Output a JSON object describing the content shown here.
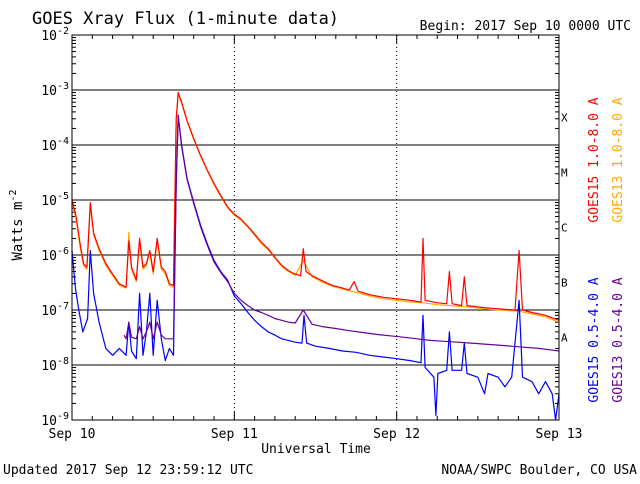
{
  "chart_data": {
    "type": "line",
    "title": "GOES Xray Flux (1-minute data)",
    "begin": "Begin:  2017 Sep 10 0000 UTC",
    "ylabel": "Watts m",
    "ylabel_exponent": "-2",
    "xlabel": "Universal Time",
    "yscale": "log",
    "ylim": [
      1e-09,
      0.01
    ],
    "xlim": [
      0,
      72
    ],
    "x_unit": "hours since 2017 Sep 10 0000 UTC",
    "x_ticks": [
      {
        "x": 0,
        "label": "Sep 10"
      },
      {
        "x": 24,
        "label": "Sep 11"
      },
      {
        "x": 48,
        "label": "Sep 12"
      },
      {
        "x": 72,
        "label": "Sep 13"
      }
    ],
    "y_ticks": [
      {
        "exp": -2,
        "base": "10",
        "sup": "-2"
      },
      {
        "exp": -3,
        "base": "10",
        "sup": "-3"
      },
      {
        "exp": -4,
        "base": "10",
        "sup": "-4"
      },
      {
        "exp": -5,
        "base": "10",
        "sup": "-5"
      },
      {
        "exp": -6,
        "base": "10",
        "sup": "-6"
      },
      {
        "exp": -7,
        "base": "10",
        "sup": "-7"
      },
      {
        "exp": -8,
        "base": "10",
        "sup": "-8"
      },
      {
        "exp": -9,
        "base": "10",
        "sup": "-9"
      }
    ],
    "flare_classes": [
      {
        "label": "X",
        "value": 0.0001
      },
      {
        "label": "M",
        "value": 1e-05
      },
      {
        "label": "C",
        "value": 1e-06
      },
      {
        "label": "B",
        "value": 1e-07
      },
      {
        "label": "A",
        "value": 1e-08
      }
    ],
    "series": [
      {
        "name": "GOES15 1.0-8.0 A",
        "color": "#ff0000",
        "points": [
          [
            0,
            1e-05
          ],
          [
            0.6,
            5e-06
          ],
          [
            1.2,
            1.6e-06
          ],
          [
            1.7,
            7e-07
          ],
          [
            2.2,
            6e-07
          ],
          [
            2.7,
            9e-06
          ],
          [
            3.2,
            2.5e-06
          ],
          [
            4,
            1.3e-06
          ],
          [
            5,
            7e-07
          ],
          [
            6,
            4.5e-07
          ],
          [
            7,
            3e-07
          ],
          [
            8,
            2.6e-07
          ],
          [
            8.4,
            1.8e-06
          ],
          [
            8.8,
            6e-07
          ],
          [
            9.5,
            3.5e-07
          ],
          [
            10,
            2e-06
          ],
          [
            10.5,
            6e-07
          ],
          [
            11,
            7e-07
          ],
          [
            11.5,
            1.2e-06
          ],
          [
            12,
            5e-07
          ],
          [
            12.6,
            2e-06
          ],
          [
            13.2,
            6e-07
          ],
          [
            13.8,
            5e-07
          ],
          [
            14.4,
            3e-07
          ],
          [
            15,
            2.8e-07
          ],
          [
            15.4,
            0.0003
          ],
          [
            15.7,
            0.0009
          ],
          [
            16.2,
            0.0006
          ],
          [
            17,
            0.00028
          ],
          [
            18,
            0.00013
          ],
          [
            19,
            6.5e-05
          ],
          [
            20,
            3.5e-05
          ],
          [
            21,
            2e-05
          ],
          [
            22,
            1.2e-05
          ],
          [
            23,
            7.5e-06
          ],
          [
            24,
            5.5e-06
          ],
          [
            25,
            4.5e-06
          ],
          [
            26,
            3.3e-06
          ],
          [
            27,
            2.4e-06
          ],
          [
            28,
            1.7e-06
          ],
          [
            29,
            1.3e-06
          ],
          [
            30,
            9e-07
          ],
          [
            31,
            6.5e-07
          ],
          [
            32,
            5.2e-07
          ],
          [
            33,
            4.5e-07
          ],
          [
            33.8,
            4.2e-07
          ],
          [
            34.2,
            1.3e-06
          ],
          [
            34.6,
            5e-07
          ],
          [
            35.5,
            4.2e-07
          ],
          [
            37,
            3.4e-07
          ],
          [
            38.5,
            2.8e-07
          ],
          [
            40,
            2.5e-07
          ],
          [
            41,
            2.3e-07
          ],
          [
            41.7,
            3.3e-07
          ],
          [
            42.3,
            2.2e-07
          ],
          [
            44,
            1.9e-07
          ],
          [
            46,
            1.7e-07
          ],
          [
            48,
            1.6e-07
          ],
          [
            50,
            1.5e-07
          ],
          [
            51.6,
            1.4e-07
          ],
          [
            51.9,
            2e-06
          ],
          [
            52.2,
            1.5e-07
          ],
          [
            54,
            1.35e-07
          ],
          [
            55.4,
            1.3e-07
          ],
          [
            55.8,
            5e-07
          ],
          [
            56.2,
            1.3e-07
          ],
          [
            57.6,
            1.2e-07
          ],
          [
            58,
            4e-07
          ],
          [
            58.4,
            1.2e-07
          ],
          [
            61,
            1.1e-07
          ],
          [
            63,
            1.05e-07
          ],
          [
            65.5,
            1e-07
          ],
          [
            66.1,
            1.2e-06
          ],
          [
            66.6,
            1e-07
          ],
          [
            68,
            9e-08
          ],
          [
            70,
            8e-08
          ],
          [
            72,
            6.5e-08
          ]
        ]
      },
      {
        "name": "GOES13 1.0-8.0 A",
        "color": "#ffaa00",
        "points": [
          [
            0,
            9e-06
          ],
          [
            0.6,
            4.5e-06
          ],
          [
            1.2,
            1.4e-06
          ],
          [
            1.7,
            6.5e-07
          ],
          [
            2.2,
            5.5e-07
          ],
          [
            2.7,
            8e-06
          ],
          [
            3.2,
            2.3e-06
          ],
          [
            4,
            1.2e-06
          ],
          [
            5,
            6.5e-07
          ],
          [
            6,
            4.2e-07
          ],
          [
            7,
            2.8e-07
          ],
          [
            8,
            2.5e-07
          ],
          [
            8.4,
            2.6e-06
          ],
          [
            8.8,
            5.5e-07
          ],
          [
            9.5,
            3.3e-07
          ],
          [
            10,
            1.8e-06
          ],
          [
            10.5,
            5.5e-07
          ],
          [
            11,
            6.5e-07
          ],
          [
            11.5,
            1.1e-06
          ],
          [
            12,
            4.5e-07
          ],
          [
            12.6,
            1.8e-06
          ],
          [
            13.2,
            5.5e-07
          ],
          [
            13.8,
            4.5e-07
          ],
          [
            14.4,
            2.8e-07
          ],
          [
            15,
            2.6e-07
          ],
          [
            15.4,
            0.00028
          ],
          [
            15.7,
            0.00085
          ],
          [
            16.2,
            0.00058
          ],
          [
            17,
            0.00027
          ],
          [
            18,
            0.000125
          ],
          [
            19,
            6.3e-05
          ],
          [
            20,
            3.4e-05
          ],
          [
            21,
            1.9e-05
          ],
          [
            22,
            1.15e-05
          ],
          [
            23,
            7.2e-06
          ],
          [
            24,
            5.3e-06
          ],
          [
            25,
            4.3e-06
          ],
          [
            26,
            3.2e-06
          ],
          [
            27,
            2.3e-06
          ],
          [
            28,
            1.6e-06
          ],
          [
            29,
            1.25e-06
          ],
          [
            30,
            8.7e-07
          ],
          [
            31,
            6.2e-07
          ],
          [
            32,
            5e-07
          ],
          [
            33,
            4.3e-07
          ],
          [
            34.2,
            8e-07
          ],
          [
            35.5,
            4e-07
          ],
          [
            37,
            3.2e-07
          ],
          [
            38.5,
            2.7e-07
          ],
          [
            40,
            2.4e-07
          ],
          [
            42,
            2.1e-07
          ],
          [
            44,
            1.8e-07
          ],
          [
            46,
            1.6e-07
          ],
          [
            48,
            1.5e-07
          ],
          [
            50,
            1.4e-07
          ],
          [
            52,
            1.35e-07
          ],
          [
            54,
            1.25e-07
          ],
          [
            56,
            1.2e-07
          ],
          [
            58,
            1.15e-07
          ],
          [
            61,
            1.05e-07
          ],
          [
            63,
            1e-07
          ],
          [
            66,
            9.5e-08
          ],
          [
            68,
            8.5e-08
          ],
          [
            70,
            7.5e-08
          ],
          [
            72,
            6e-08
          ]
        ]
      },
      {
        "name": "GOES15 0.5-4.0 A",
        "color": "#0000ff",
        "points": [
          [
            0,
            1.2e-06
          ],
          [
            0.5,
            2.5e-07
          ],
          [
            1,
            1e-07
          ],
          [
            1.6,
            4e-08
          ],
          [
            2.3,
            7e-08
          ],
          [
            2.7,
            1.2e-06
          ],
          [
            3.2,
            2e-07
          ],
          [
            4,
            6e-08
          ],
          [
            5,
            2e-08
          ],
          [
            6,
            1.5e-08
          ],
          [
            7,
            2e-08
          ],
          [
            8,
            1.5e-08
          ],
          [
            8.4,
            6e-08
          ],
          [
            8.8,
            1.8e-08
          ],
          [
            9.5,
            1.3e-08
          ],
          [
            10,
            2e-07
          ],
          [
            10.5,
            1.5e-08
          ],
          [
            11,
            4e-08
          ],
          [
            11.5,
            2e-07
          ],
          [
            12,
            1.5e-08
          ],
          [
            12.6,
            1.5e-07
          ],
          [
            13.2,
            3e-08
          ],
          [
            13.8,
            1.2e-08
          ],
          [
            14.4,
            2e-08
          ],
          [
            15,
            1.5e-08
          ],
          [
            15.4,
            2e-05
          ],
          [
            15.7,
            0.00035
          ],
          [
            16.2,
            0.0001
          ],
          [
            17,
            2.5e-05
          ],
          [
            18,
            9e-06
          ],
          [
            19,
            3.5e-06
          ],
          [
            20,
            1.6e-06
          ],
          [
            21,
            8e-07
          ],
          [
            22,
            5e-07
          ],
          [
            23,
            3.5e-07
          ],
          [
            24,
            1.8e-07
          ],
          [
            25,
            1.3e-07
          ],
          [
            26,
            9e-08
          ],
          [
            27,
            6.5e-08
          ],
          [
            28,
            5e-08
          ],
          [
            29,
            4e-08
          ],
          [
            30,
            3.5e-08
          ],
          [
            31,
            3e-08
          ],
          [
            32,
            2.8e-08
          ],
          [
            33,
            2.6e-08
          ],
          [
            34,
            2.5e-08
          ],
          [
            34.3,
            8e-08
          ],
          [
            34.7,
            2.5e-08
          ],
          [
            36,
            2.2e-08
          ],
          [
            38,
            2e-08
          ],
          [
            40,
            1.8e-08
          ],
          [
            42,
            1.7e-08
          ],
          [
            44,
            1.5e-08
          ],
          [
            46,
            1.4e-08
          ],
          [
            48,
            1.3e-08
          ],
          [
            50,
            1.2e-08
          ],
          [
            51.6,
            1.1e-08
          ],
          [
            51.9,
            8e-08
          ],
          [
            52.2,
            9e-09
          ],
          [
            53.5,
            6e-09
          ],
          [
            53.8,
            1.2e-09
          ],
          [
            54.1,
            7e-09
          ],
          [
            55.4,
            8e-09
          ],
          [
            55.8,
            4e-08
          ],
          [
            56.2,
            8e-09
          ],
          [
            57.6,
            8e-09
          ],
          [
            58,
            2.5e-08
          ],
          [
            58.4,
            7e-09
          ],
          [
            60,
            6e-09
          ],
          [
            61,
            3e-09
          ],
          [
            61.5,
            7e-09
          ],
          [
            63,
            6e-09
          ],
          [
            64,
            4e-09
          ],
          [
            65,
            6e-09
          ],
          [
            66.1,
            1.5e-07
          ],
          [
            66.6,
            6e-09
          ],
          [
            68,
            5e-09
          ],
          [
            69,
            3e-09
          ],
          [
            70,
            5e-09
          ],
          [
            71,
            3e-09
          ],
          [
            71.5,
            1e-09
          ],
          [
            72,
            3e-09
          ]
        ]
      },
      {
        "name": "GOES13 0.5-4.0 A",
        "color": "#660099",
        "points": [
          [
            7.7,
            3.5e-08
          ],
          [
            8,
            3e-08
          ],
          [
            8.4,
            6e-08
          ],
          [
            8.8,
            3.2e-08
          ],
          [
            9.5,
            3e-08
          ],
          [
            10,
            5e-08
          ],
          [
            10.5,
            3e-08
          ],
          [
            11,
            4e-08
          ],
          [
            11.5,
            6e-08
          ],
          [
            12,
            3e-08
          ],
          [
            12.6,
            6e-08
          ],
          [
            13.2,
            3.5e-08
          ],
          [
            13.8,
            3e-08
          ],
          [
            14.4,
            3e-08
          ],
          [
            15,
            3e-08
          ],
          [
            15.4,
            2e-05
          ],
          [
            15.7,
            0.00033
          ],
          [
            16.2,
            9.5e-05
          ],
          [
            17,
            2.4e-05
          ],
          [
            18,
            8.5e-06
          ],
          [
            19,
            3.3e-06
          ],
          [
            20,
            1.5e-06
          ],
          [
            21,
            7.5e-07
          ],
          [
            22,
            4.8e-07
          ],
          [
            23,
            3.3e-07
          ],
          [
            24,
            2e-07
          ],
          [
            25,
            1.5e-07
          ],
          [
            26,
            1.2e-07
          ],
          [
            27,
            1e-07
          ],
          [
            28,
            9e-08
          ],
          [
            29,
            8e-08
          ],
          [
            30,
            7e-08
          ],
          [
            31,
            6.5e-08
          ],
          [
            32,
            6e-08
          ],
          [
            33,
            5.8e-08
          ],
          [
            34.2,
            1e-07
          ],
          [
            35.5,
            5.5e-08
          ],
          [
            37,
            5e-08
          ],
          [
            39,
            4.6e-08
          ],
          [
            41,
            4.2e-08
          ],
          [
            43,
            3.9e-08
          ],
          [
            45,
            3.6e-08
          ],
          [
            47,
            3.4e-08
          ],
          [
            49,
            3.2e-08
          ],
          [
            51,
            3e-08
          ],
          [
            53,
            2.8e-08
          ],
          [
            55,
            2.7e-08
          ],
          [
            57,
            2.6e-08
          ],
          [
            59,
            2.5e-08
          ],
          [
            61,
            2.4e-08
          ],
          [
            63,
            2.3e-08
          ],
          [
            65,
            2.2e-08
          ],
          [
            67,
            2.1e-08
          ],
          [
            69,
            2e-08
          ],
          [
            70.5,
            1.9e-08
          ],
          [
            72,
            1.8e-08
          ]
        ]
      }
    ]
  },
  "footer": {
    "updated": "Updated 2017 Sep 12 23:59:12 UTC",
    "credit": "NOAA/SWPC Boulder, CO USA"
  }
}
